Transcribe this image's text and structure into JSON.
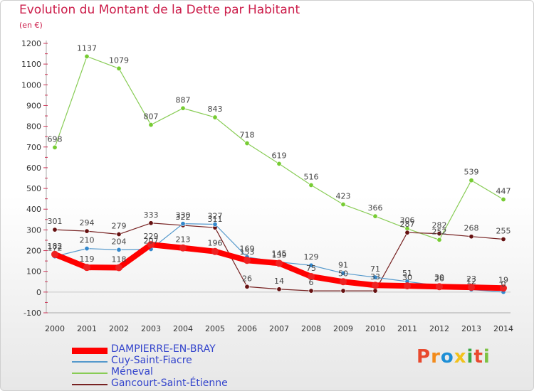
{
  "title": "Evolution du Montant de la Dette par Habitant",
  "subtitle": "(en €)",
  "logo": {
    "text": "Proxiti",
    "colors": [
      "#e8492e",
      "#f28b1c",
      "#1e8fd6",
      "#f2c21c",
      "#3aa844",
      "#e8492e",
      "#7cc242"
    ]
  },
  "chart_data": {
    "type": "line",
    "title": "Evolution du Montant de la Dette par Habitant",
    "ylabel": "(en €)",
    "x": [
      "2000",
      "2001",
      "2002",
      "2003",
      "2004",
      "2005",
      "2006",
      "2007",
      "2008",
      "2009",
      "2010",
      "2011",
      "2012",
      "2013",
      "2014"
    ],
    "ylim": [
      -100,
      1200
    ],
    "yticks": [
      -100,
      0,
      100,
      200,
      300,
      400,
      500,
      600,
      700,
      800,
      900,
      1000,
      1100,
      1200
    ],
    "grid": false,
    "legend_position": "bottom-left",
    "series": [
      {
        "name": "Méneval",
        "color": "#88cc55",
        "marker": "#77cc33",
        "values": [
          698,
          1137,
          1079,
          807,
          887,
          843,
          718,
          619,
          516,
          423,
          366,
          306,
          252,
          539,
          447
        ],
        "labels": [
          "698",
          "1137",
          "1079",
          "807",
          "887",
          "843",
          "718",
          "619",
          "516",
          "423",
          "366",
          "306",
          "252",
          "539",
          "447"
        ]
      },
      {
        "name": "Gancourt-Saint-Étienne",
        "color": "#772222",
        "marker": "#661111",
        "values": [
          301,
          294,
          279,
          333,
          322,
          311,
          26,
          14,
          6,
          6,
          6,
          287,
          282,
          268,
          255
        ],
        "labels": [
          "301",
          "294",
          "279",
          "333",
          "322",
          "311",
          "26",
          "14",
          "6",
          "",
          "",
          "287",
          "282",
          "268",
          "255"
        ]
      },
      {
        "name": "Cuy-Saint-Fiacre",
        "color": "#5599cc",
        "marker": "#3388cc",
        "values": [
          172,
          210,
          204,
          207,
          330,
          327,
          169,
          145,
          129,
          91,
          71,
          51,
          30,
          12,
          0
        ],
        "labels": [
          "172",
          "210",
          "204",
          "207",
          "330",
          "327",
          "169",
          "145",
          "129",
          "91",
          "71",
          "51",
          "30",
          "12",
          "0"
        ]
      },
      {
        "name": "DAMPIERRE-EN-BRAY",
        "color": "#ff0000",
        "marker": "#ee2222",
        "values": [
          182,
          119,
          118,
          229,
          213,
          196,
          153,
          139,
          75,
          50,
          33,
          30,
          26,
          23,
          19
        ],
        "labels": [
          "182",
          "119",
          "118",
          "229",
          "213",
          "196",
          "153",
          "139",
          "75",
          "50",
          "33",
          "30",
          "26",
          "23",
          "19"
        ]
      }
    ]
  }
}
